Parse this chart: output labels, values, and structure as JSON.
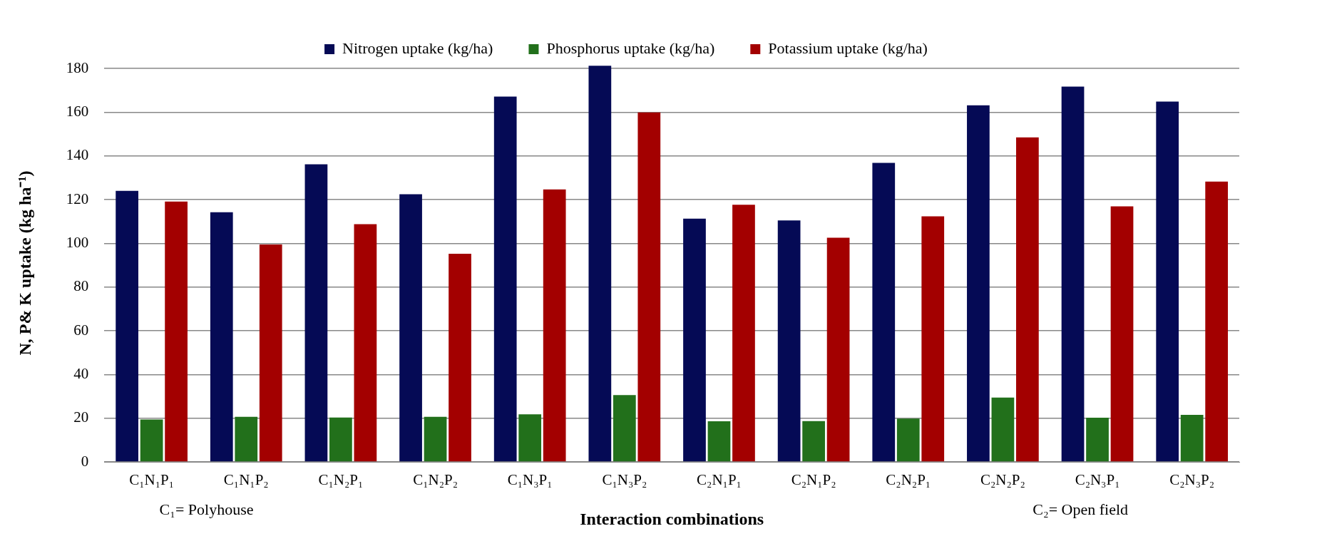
{
  "chart_data": {
    "type": "bar",
    "categories": [
      "C₁N₁P₁",
      "C₁N₁P₂",
      "C₁N₂P₁",
      "C₁N₂P₂",
      "C₁N₃P₁",
      "C₁N₃P₂",
      "C₂N₁P₁",
      "C₂N₁P₂",
      "C₂N₂P₁",
      "C₂N₂P₂",
      "C₂N₃P₁",
      "C₂N₃P₂"
    ],
    "series": [
      {
        "name": "Nitrogen uptake (kg/ha)",
        "color": "#050a55",
        "values": [
          124.0,
          114.2,
          136.2,
          122.5,
          167.2,
          181.3,
          111.3,
          110.5,
          136.8,
          163.2,
          171.7,
          164.9
        ]
      },
      {
        "name": "Phosphorus uptake (kg/ha)",
        "color": "#22701b",
        "values": [
          19.4,
          20.6,
          20.3,
          20.6,
          21.8,
          30.6,
          18.6,
          18.7,
          19.8,
          29.4,
          20.2,
          21.5
        ]
      },
      {
        "name": "Potassium uptake (kg/ha)",
        "color": "#a30000",
        "values": [
          119.1,
          99.5,
          108.8,
          95.2,
          124.7,
          159.9,
          117.7,
          102.6,
          112.4,
          148.5,
          116.9,
          128.3
        ]
      }
    ],
    "xlabel": "Interaction combinations",
    "ylabel": "N, P& K uptake (kg ha⁻¹)",
    "ylim": [
      0,
      182
    ],
    "yticks": [
      0,
      20,
      40,
      60,
      80,
      100,
      120,
      140,
      160,
      180
    ],
    "grid": "y",
    "legend": "top",
    "annotations": [
      "C₁= Polyhouse",
      "C₂= Open field"
    ]
  }
}
